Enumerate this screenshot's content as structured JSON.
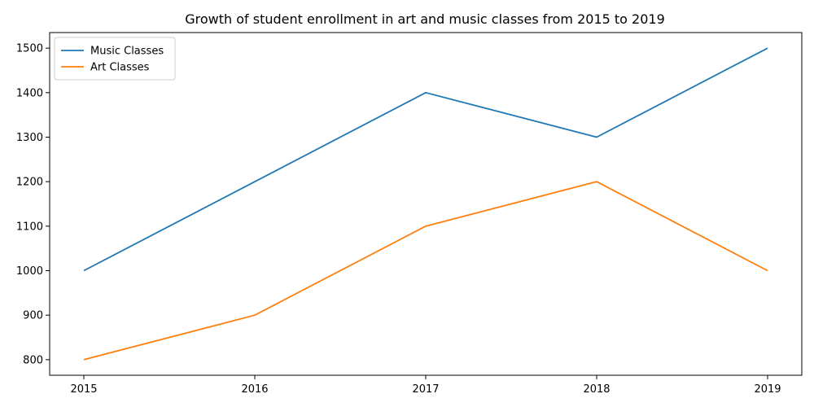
{
  "chart_data": {
    "type": "line",
    "title": "Growth of student enrollment in art and music classes from 2015 to 2019",
    "xlabel": "",
    "ylabel": "",
    "categories": [
      "2015",
      "2016",
      "2017",
      "2018",
      "2019"
    ],
    "yticks": [
      800,
      900,
      1000,
      1100,
      1200,
      1300,
      1400,
      1500
    ],
    "ylim": [
      765,
      1535
    ],
    "grid": false,
    "legend_position": "top-left",
    "series": [
      {
        "name": "Music Classes",
        "color": "#1f77b4",
        "values": [
          1000,
          1200,
          1400,
          1300,
          1500
        ]
      },
      {
        "name": "Art Classes",
        "color": "#ff7f0e",
        "values": [
          800,
          900,
          1100,
          1200,
          1000
        ]
      }
    ]
  }
}
